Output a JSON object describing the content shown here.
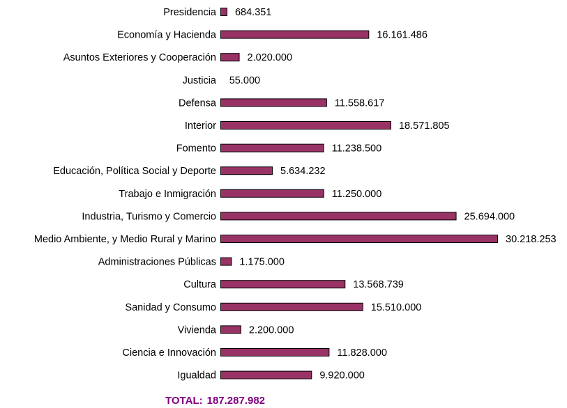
{
  "chart_data": {
    "type": "bar",
    "orientation": "horizontal",
    "categories": [
      "Presidencia",
      "Economía y Hacienda",
      "Asuntos Exteriores y Cooperación",
      "Justicia",
      "Defensa",
      "Interior",
      "Fomento",
      "Educación, Política Social y Deporte",
      "Trabajo e Inmigración",
      "Industria, Turismo y Comercio",
      "Medio Ambiente, y Medio Rural y Marino",
      "Administraciones Públicas",
      "Cultura",
      "Sanidad y Consumo",
      "Vivienda",
      "Ciencia e Innovación",
      "Igualdad"
    ],
    "values": [
      684351,
      16161486,
      2020000,
      55000,
      11558617,
      18571805,
      11238500,
      5634232,
      11250000,
      25694000,
      30218253,
      1175000,
      13568739,
      15510000,
      2200000,
      11828000,
      9920000
    ],
    "value_labels": [
      "684.351",
      "16.161.486",
      "2.020.000",
      "55.000",
      "11.558.617",
      "18.571.805",
      "11.238.500",
      "5.634.232",
      "11.250.000",
      "25.694.000",
      "30.218.253",
      "1.175.000",
      "13.568.739",
      "15.510.000",
      "2.200.000",
      "11.828.000",
      "9.920.000"
    ],
    "grid": false,
    "legend": "none"
  },
  "colors": {
    "bar_fill": "#993366",
    "total_color": "#800080"
  },
  "total": {
    "label": "TOTAL:",
    "value": "187.287.982"
  }
}
